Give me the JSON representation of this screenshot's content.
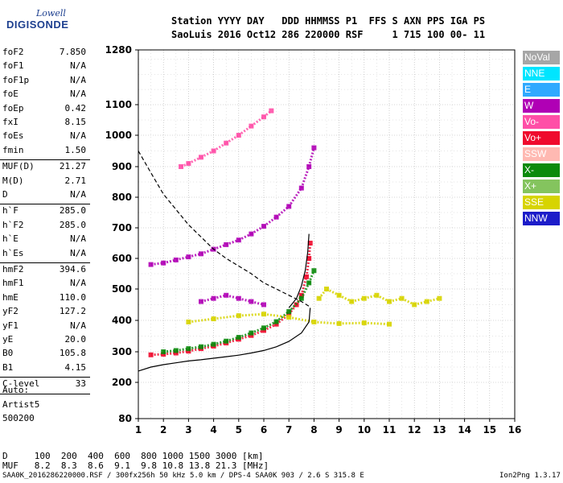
{
  "logo": {
    "top": "Lowell",
    "bottom": "DIGISONDE"
  },
  "header": {
    "line1": "Station YYYY DAY   DDD HHMMSS P1  FFS S AXN PPS IGA PS",
    "line2": "SaoLuis 2016 Oct12 286 220000 RSF     1 715 100 00- 11"
  },
  "params": [
    {
      "label": "foF2",
      "value": "7.850"
    },
    {
      "label": "foF1",
      "value": "N/A"
    },
    {
      "label": "foF1p",
      "value": "N/A"
    },
    {
      "label": "foE",
      "value": "N/A"
    },
    {
      "label": "foEp",
      "value": "0.42"
    },
    {
      "label": "fxI",
      "value": "8.15"
    },
    {
      "label": "foEs",
      "value": "N/A"
    },
    {
      "label": "fmin",
      "value": "1.50"
    },
    {
      "label": "MUF(D)",
      "value": "21.27"
    },
    {
      "label": "M(D)",
      "value": "2.71"
    },
    {
      "label": "D",
      "value": "N/A"
    },
    {
      "label": "h`F",
      "value": "285.0"
    },
    {
      "label": "h`F2",
      "value": "285.0"
    },
    {
      "label": "h`E",
      "value": "N/A"
    },
    {
      "label": "h`Es",
      "value": "N/A"
    },
    {
      "label": "hmF2",
      "value": "394.6"
    },
    {
      "label": "hmF1",
      "value": "N/A"
    },
    {
      "label": "hmE",
      "value": "110.0"
    },
    {
      "label": "yF2",
      "value": "127.2"
    },
    {
      "label": "yF1",
      "value": "N/A"
    },
    {
      "label": "yE",
      "value": "20.0"
    },
    {
      "label": "B0",
      "value": "105.8"
    },
    {
      "label": "B1",
      "value": "4.15"
    },
    {
      "label": "C-level",
      "value": "33"
    }
  ],
  "status": {
    "line1": "Auto:",
    "line2": "Artist5",
    "line3": "500200"
  },
  "muf_table": {
    "d_line": "D     100  200  400  600  800 1000 1500 3000 [km]",
    "muf_line": "MUF   8.2  8.3  8.6  9.1  9.8 10.8 13.8 21.3 [MHz]"
  },
  "footer": {
    "left": "SAA0K_2016286220000.RSF / 300fx256h 50 kHz 5.0 km / DPS-4 SAA0K 903 / 2.6 S 315.8 E",
    "right": "Ion2Png 1.3.17"
  },
  "legend": [
    {
      "label": "NoVal",
      "color": "#a6a6a6"
    },
    {
      "label": "NNE",
      "color": "#00e5ff"
    },
    {
      "label": "E",
      "color": "#2fa9ff"
    },
    {
      "label": "W",
      "color": "#b000b5"
    },
    {
      "label": "Vo-",
      "color": "#ff4fa7"
    },
    {
      "label": "Vo+",
      "color": "#ef0b2d"
    },
    {
      "label": "SSW",
      "color": "#ffb9b2"
    },
    {
      "label": "X-",
      "color": "#0b8a0b"
    },
    {
      "label": "X+",
      "color": "#84c45e"
    },
    {
      "label": "SSE",
      "color": "#d7d400"
    },
    {
      "label": "NNW",
      "color": "#1c1cc9"
    }
  ],
  "chart_data": {
    "type": "scatter",
    "x_ticks": [
      1,
      2,
      3,
      4,
      5,
      6,
      7,
      8,
      9,
      10,
      11,
      12,
      13,
      14,
      15,
      16
    ],
    "y_ticks": [
      80,
      200,
      300,
      400,
      500,
      600,
      700,
      800,
      900,
      1000,
      1100,
      1280
    ],
    "xlim": [
      1,
      16
    ],
    "ylim": [
      80,
      1280
    ],
    "grid": true,
    "x_unit": "MHz",
    "y_unit": "km",
    "series": [
      {
        "role": "F2 O-trace",
        "color": "#ef0b2d",
        "points": [
          [
            1.5,
            290
          ],
          [
            2.0,
            292
          ],
          [
            2.5,
            296
          ],
          [
            3.0,
            302
          ],
          [
            3.5,
            310
          ],
          [
            4.0,
            318
          ],
          [
            4.5,
            328
          ],
          [
            5.0,
            340
          ],
          [
            5.5,
            352
          ],
          [
            6.0,
            368
          ],
          [
            6.5,
            388
          ],
          [
            7.0,
            420
          ],
          [
            7.3,
            450
          ],
          [
            7.5,
            480
          ],
          [
            7.7,
            540
          ],
          [
            7.8,
            600
          ],
          [
            7.85,
            650
          ]
        ]
      },
      {
        "role": "F2 X-trace",
        "color": "#0b8a0b",
        "points": [
          [
            2.0,
            300
          ],
          [
            2.5,
            304
          ],
          [
            3.0,
            310
          ],
          [
            3.5,
            316
          ],
          [
            4.0,
            324
          ],
          [
            4.5,
            334
          ],
          [
            5.0,
            346
          ],
          [
            5.5,
            360
          ],
          [
            6.0,
            376
          ],
          [
            6.5,
            396
          ],
          [
            7.0,
            428
          ],
          [
            7.5,
            470
          ],
          [
            7.8,
            520
          ],
          [
            8.0,
            560
          ]
        ]
      },
      {
        "role": "secondary echo",
        "color": "#d7d400",
        "points": [
          [
            3.0,
            395
          ],
          [
            4.0,
            405
          ],
          [
            5.0,
            415
          ],
          [
            6.0,
            420
          ],
          [
            7.0,
            410
          ],
          [
            8.0,
            395
          ],
          [
            9.0,
            390
          ],
          [
            10.0,
            392
          ],
          [
            11.0,
            388
          ]
        ]
      },
      {
        "role": "second-hop echo",
        "color": "#b000b5",
        "points": [
          [
            1.5,
            580
          ],
          [
            2.0,
            585
          ],
          [
            2.5,
            595
          ],
          [
            3.0,
            605
          ],
          [
            3.5,
            615
          ],
          [
            4.0,
            630
          ],
          [
            4.5,
            645
          ],
          [
            5.0,
            660
          ],
          [
            5.5,
            680
          ],
          [
            6.0,
            705
          ],
          [
            6.5,
            735
          ],
          [
            7.0,
            770
          ],
          [
            7.5,
            830
          ],
          [
            7.8,
            900
          ],
          [
            8.0,
            960
          ]
        ]
      },
      {
        "role": "third-hop echo",
        "color": "#ff4fa7",
        "points": [
          [
            2.7,
            900
          ],
          [
            3.0,
            910
          ],
          [
            3.5,
            930
          ],
          [
            4.0,
            950
          ],
          [
            4.5,
            975
          ],
          [
            5.0,
            1000
          ],
          [
            5.5,
            1030
          ],
          [
            6.0,
            1060
          ],
          [
            6.3,
            1080
          ]
        ]
      },
      {
        "role": "spread echoes",
        "color": "#b000b5",
        "points": [
          [
            3.5,
            460
          ],
          [
            4.0,
            470
          ],
          [
            4.5,
            480
          ],
          [
            5.0,
            470
          ],
          [
            5.5,
            460
          ],
          [
            6.0,
            450
          ]
        ]
      },
      {
        "role": "multi-hop scatter",
        "color": "#d7d400",
        "points": [
          [
            8.2,
            470
          ],
          [
            8.5,
            500
          ],
          [
            9.0,
            480
          ],
          [
            9.5,
            460
          ],
          [
            10.0,
            470
          ],
          [
            10.5,
            480
          ],
          [
            11.0,
            460
          ],
          [
            11.5,
            470
          ],
          [
            12.0,
            450
          ],
          [
            12.5,
            460
          ],
          [
            13.0,
            470
          ]
        ]
      }
    ],
    "model_curves": [
      {
        "style": "solid",
        "points": [
          [
            1.0,
            237
          ],
          [
            1.5,
            250
          ],
          [
            2.0,
            258
          ],
          [
            2.5,
            264
          ],
          [
            3.0,
            270
          ],
          [
            3.5,
            274
          ],
          [
            4.0,
            279
          ],
          [
            4.5,
            284
          ],
          [
            5.0,
            289
          ],
          [
            5.5,
            296
          ],
          [
            6.0,
            304
          ],
          [
            6.5,
            316
          ],
          [
            7.0,
            333
          ],
          [
            7.5,
            360
          ],
          [
            7.8,
            395
          ],
          [
            7.85,
            440
          ]
        ]
      },
      {
        "style": "solid",
        "points": [
          [
            7.0,
            440
          ],
          [
            7.3,
            470
          ],
          [
            7.5,
            510
          ],
          [
            7.65,
            560
          ],
          [
            7.75,
            620
          ],
          [
            7.8,
            680
          ]
        ]
      },
      {
        "style": "dashed",
        "points": [
          [
            1.0,
            950
          ],
          [
            1.5,
            880
          ],
          [
            2.0,
            810
          ],
          [
            2.5,
            760
          ],
          [
            3.0,
            710
          ],
          [
            3.5,
            670
          ],
          [
            4.0,
            630
          ],
          [
            4.5,
            600
          ],
          [
            5.0,
            575
          ],
          [
            5.5,
            550
          ],
          [
            6.0,
            520
          ],
          [
            6.5,
            500
          ],
          [
            7.0,
            480
          ],
          [
            7.5,
            460
          ],
          [
            7.8,
            445
          ]
        ]
      }
    ]
  }
}
